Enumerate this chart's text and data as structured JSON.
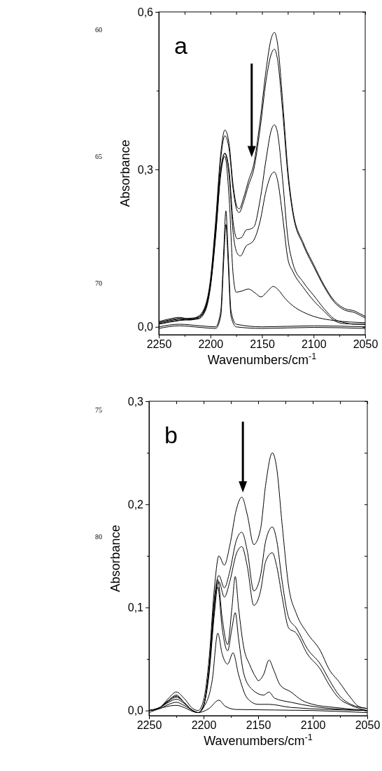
{
  "chart_data": [
    {
      "type": "line",
      "xlabel": "Wavenumbers/cm$^{-1}$",
      "ylabel": "Absorbance",
      "annotations": [
        "a",
        "60",
        "65",
        "70"
      ],
      "xlim": [
        2250,
        2050
      ],
      "xticks": [
        2250,
        {
          "value": 2225,
          "label": null
        },
        2200,
        {
          "value": 2175,
          "label": null
        },
        2150,
        {
          "value": 2125,
          "label": null
        },
        2100,
        {
          "value": 2075,
          "label": null
        },
        2050
      ],
      "ylim": [
        -0.015,
        0.6
      ],
      "yticks": [
        {
          "value": 0,
          "label": "0,0"
        },
        {
          "value": 0.15,
          "label": null
        },
        {
          "value": 0.3,
          "label": "0,3"
        },
        {
          "value": 0.45,
          "label": null
        },
        {
          "value": 0.6,
          "label": "0,6"
        }
      ],
      "grid": false,
      "marker": "none",
      "line_style": "solid",
      "series": [
        {
          "color": "#000000",
          "x": [
            2250,
            2240,
            2230,
            2220,
            2212,
            2205,
            2200,
            2195,
            2190,
            2186,
            2182,
            2178,
            2174,
            2172,
            2168,
            2163,
            2158,
            2152,
            2146,
            2141,
            2138,
            2135,
            2130,
            2125,
            2120,
            2110,
            2100,
            2090,
            2080,
            2070,
            2060,
            2055,
            2050
          ],
          "values": [
            0.01,
            0.015,
            0.018,
            0.015,
            0.02,
            0.04,
            0.09,
            0.2,
            0.33,
            0.375,
            0.35,
            0.27,
            0.228,
            0.225,
            0.245,
            0.279,
            0.31,
            0.39,
            0.49,
            0.55,
            0.561,
            0.54,
            0.43,
            0.3,
            0.22,
            0.16,
            0.119,
            0.08,
            0.05,
            0.035,
            0.03,
            0.025,
            0.02
          ]
        },
        {
          "color": "#000000",
          "x": [
            2250,
            2240,
            2230,
            2220,
            2212,
            2205,
            2200,
            2195,
            2190,
            2186,
            2182,
            2178,
            2174,
            2172,
            2168,
            2163,
            2158,
            2152,
            2146,
            2141,
            2138,
            2135,
            2130,
            2125,
            2120,
            2110,
            2100,
            2090,
            2080,
            2070,
            2060,
            2055,
            2050
          ],
          "values": [
            0.008,
            0.013,
            0.016,
            0.013,
            0.018,
            0.037,
            0.085,
            0.19,
            0.32,
            0.364,
            0.34,
            0.262,
            0.221,
            0.218,
            0.237,
            0.27,
            0.3,
            0.375,
            0.47,
            0.52,
            0.529,
            0.51,
            0.41,
            0.29,
            0.215,
            0.156,
            0.115,
            0.077,
            0.047,
            0.032,
            0.027,
            0.022,
            0.017
          ]
        },
        {
          "color": "#000000",
          "x": [
            2250,
            2230,
            2212,
            2205,
            2200,
            2195,
            2190,
            2186,
            2182,
            2178,
            2174,
            2170,
            2165,
            2162,
            2158,
            2152,
            2146,
            2141,
            2138,
            2135,
            2130,
            2125,
            2120,
            2110,
            2100,
            2090,
            2080,
            2070,
            2060,
            2050
          ],
          "values": [
            0.008,
            0.015,
            0.018,
            0.035,
            0.08,
            0.18,
            0.3,
            0.331,
            0.3,
            0.2,
            0.168,
            0.17,
            0.185,
            0.186,
            0.19,
            0.24,
            0.32,
            0.375,
            0.385,
            0.37,
            0.28,
            0.17,
            0.12,
            0.085,
            0.06,
            0.035,
            0.015,
            0.008,
            0.005,
            0.005
          ]
        },
        {
          "color": "#000000",
          "x": [
            2250,
            2230,
            2212,
            2205,
            2200,
            2195,
            2190,
            2186,
            2182,
            2178,
            2174,
            2171,
            2165,
            2162,
            2158,
            2152,
            2146,
            2141,
            2138,
            2135,
            2130,
            2125,
            2120,
            2110,
            2100,
            2090,
            2080,
            2070,
            2050
          ],
          "values": [
            0.006,
            0.013,
            0.016,
            0.033,
            0.078,
            0.175,
            0.295,
            0.33,
            0.29,
            0.18,
            0.14,
            0.135,
            0.155,
            0.158,
            0.165,
            0.2,
            0.26,
            0.29,
            0.295,
            0.28,
            0.21,
            0.13,
            0.105,
            0.075,
            0.05,
            0.03,
            0.012,
            0.006,
            0.005
          ]
        },
        {
          "color": "#000000",
          "x": [
            2250,
            2230,
            2212,
            2205,
            2200,
            2195,
            2190,
            2186,
            2182,
            2178,
            2175,
            2170,
            2163,
            2157,
            2151,
            2145,
            2139,
            2134,
            2128,
            2120,
            2110,
            2100,
            2080,
            2050
          ],
          "values": [
            0.005,
            0.012,
            0.015,
            0.03,
            0.075,
            0.17,
            0.29,
            0.325,
            0.25,
            0.1,
            0.066,
            0.068,
            0.072,
            0.065,
            0.057,
            0.067,
            0.077,
            0.07,
            0.055,
            0.04,
            0.028,
            0.02,
            0.012,
            0.008
          ]
        },
        {
          "color": "#000000",
          "x": [
            2250,
            2230,
            2210,
            2195,
            2190,
            2187,
            2185,
            2183,
            2180,
            2175,
            2150,
            2100,
            2050
          ],
          "values": [
            0.0,
            0.005,
            0.002,
            0.0,
            0.03,
            0.15,
            0.221,
            0.15,
            0.03,
            0.005,
            0.0,
            0.002,
            0.0
          ]
        },
        {
          "color": "#000000",
          "x": [
            2250,
            2230,
            2210,
            2195,
            2190,
            2187,
            2185,
            2183,
            2180,
            2175,
            2150,
            2100,
            2050
          ],
          "values": [
            -0.003,
            0.002,
            -0.001,
            -0.003,
            0.02,
            0.13,
            0.195,
            0.13,
            0.02,
            0.0,
            -0.003,
            -0.001,
            -0.003
          ]
        }
      ]
    },
    {
      "type": "line",
      "xlabel": "Wavenumbers/cm$^{-1}$",
      "ylabel": "Absorbance",
      "annotations": [
        "b",
        "75",
        "80"
      ],
      "xlim": [
        2250,
        2050
      ],
      "xticks": [
        2250,
        {
          "value": 2225,
          "label": null
        },
        2200,
        {
          "value": 2175,
          "label": null
        },
        2150,
        {
          "value": 2125,
          "label": null
        },
        2100,
        {
          "value": 2075,
          "label": null
        },
        2050
      ],
      "ylim": [
        -0.005,
        0.3
      ],
      "yticks": [
        {
          "value": 0,
          "label": "0,0"
        },
        {
          "value": 0.05,
          "label": null
        },
        {
          "value": 0.1,
          "label": "0,1"
        },
        {
          "value": 0.15,
          "label": null
        },
        {
          "value": 0.2,
          "label": "0,2"
        },
        {
          "value": 0.25,
          "label": null
        },
        {
          "value": 0.3,
          "label": "0,3"
        }
      ],
      "grid": false,
      "marker": "none",
      "line_style": "solid",
      "series": [
        {
          "color": "#000000",
          "x": [
            2250,
            2240,
            2232,
            2225,
            2218,
            2210,
            2205,
            2200,
            2195,
            2190,
            2186,
            2181,
            2176,
            2170,
            2165,
            2160,
            2154,
            2148,
            2143,
            2137,
            2133,
            2128,
            2122,
            2115,
            2105,
            2093,
            2085,
            2076,
            2065,
            2058,
            2050
          ],
          "values": [
            0.0,
            0.003,
            0.012,
            0.018,
            0.012,
            0.002,
            0.0,
            0.01,
            0.05,
            0.12,
            0.15,
            0.141,
            0.16,
            0.195,
            0.207,
            0.19,
            0.161,
            0.175,
            0.22,
            0.25,
            0.235,
            0.18,
            0.12,
            0.094,
            0.075,
            0.058,
            0.04,
            0.028,
            0.012,
            0.004,
            0.002
          ]
        },
        {
          "color": "#000000",
          "x": [
            2250,
            2240,
            2232,
            2225,
            2218,
            2210,
            2205,
            2200,
            2195,
            2190,
            2186,
            2181,
            2176,
            2170,
            2165,
            2160,
            2154,
            2148,
            2143,
            2137,
            2133,
            2128,
            2122,
            2115,
            2105,
            2093,
            2085,
            2076,
            2065,
            2050
          ],
          "values": [
            0.0,
            0.003,
            0.01,
            0.015,
            0.008,
            0.0,
            -0.002,
            0.005,
            0.04,
            0.11,
            0.131,
            0.119,
            0.135,
            0.165,
            0.173,
            0.155,
            0.116,
            0.13,
            0.165,
            0.178,
            0.165,
            0.125,
            0.09,
            0.08,
            0.06,
            0.045,
            0.03,
            0.015,
            0.006,
            0.002
          ]
        },
        {
          "color": "#000000",
          "x": [
            2250,
            2240,
            2232,
            2225,
            2218,
            2210,
            2205,
            2200,
            2195,
            2190,
            2186,
            2181,
            2176,
            2170,
            2165,
            2160,
            2154,
            2148,
            2143,
            2137,
            2133,
            2128,
            2122,
            2115,
            2105,
            2093,
            2085,
            2076,
            2065,
            2050
          ],
          "values": [
            0.0,
            0.003,
            0.01,
            0.014,
            0.008,
            0.0,
            -0.002,
            0.005,
            0.04,
            0.105,
            0.125,
            0.11,
            0.125,
            0.152,
            0.159,
            0.14,
            0.102,
            0.115,
            0.145,
            0.153,
            0.14,
            0.11,
            0.08,
            0.075,
            0.055,
            0.04,
            0.025,
            0.012,
            0.005,
            0.0
          ]
        },
        {
          "color": "#000000",
          "x": [
            2250,
            2240,
            2232,
            2225,
            2218,
            2210,
            2205,
            2200,
            2195,
            2190,
            2187,
            2183,
            2178,
            2174,
            2171,
            2168,
            2163,
            2158,
            2152,
            2150,
            2145,
            2140,
            2136,
            2130,
            2120,
            2110,
            2100,
            2080,
            2050
          ],
          "values": [
            0.0,
            0.003,
            0.009,
            0.013,
            0.008,
            0.0,
            -0.002,
            0.005,
            0.04,
            0.1,
            0.127,
            0.09,
            0.064,
            0.1,
            0.13,
            0.1,
            0.06,
            0.045,
            0.032,
            0.029,
            0.035,
            0.049,
            0.04,
            0.025,
            0.018,
            0.01,
            0.006,
            0.003,
            0.0
          ]
        },
        {
          "color": "#000000",
          "x": [
            2250,
            2240,
            2232,
            2225,
            2218,
            2210,
            2205,
            2200,
            2195,
            2190,
            2187,
            2183,
            2178,
            2174,
            2171,
            2168,
            2163,
            2155,
            2145,
            2140,
            2135,
            2120,
            2100,
            2050
          ],
          "values": [
            0.0,
            0.003,
            0.008,
            0.011,
            0.007,
            0.0,
            -0.002,
            0.005,
            0.035,
            0.095,
            0.12,
            0.08,
            0.058,
            0.08,
            0.095,
            0.07,
            0.035,
            0.02,
            0.015,
            0.018,
            0.012,
            0.008,
            0.004,
            0.0
          ]
        },
        {
          "color": "#000000",
          "x": [
            2250,
            2240,
            2232,
            2225,
            2218,
            2210,
            2205,
            2200,
            2192,
            2187,
            2183,
            2178,
            2173,
            2168,
            2160,
            2150,
            2140,
            2120,
            2050
          ],
          "values": [
            0.0,
            0.002,
            0.006,
            0.008,
            0.005,
            0.0,
            -0.002,
            0.003,
            0.03,
            0.075,
            0.055,
            0.045,
            0.056,
            0.035,
            0.012,
            0.006,
            0.006,
            0.003,
            0.0
          ]
        },
        {
          "color": "#000000",
          "x": [
            2250,
            2225,
            2205,
            2195,
            2186,
            2180,
            2170,
            2100,
            2050
          ],
          "values": [
            -0.002,
            0.005,
            -0.002,
            0.002,
            0.01,
            0.004,
            0.001,
            0.0,
            -0.002
          ]
        }
      ]
    }
  ]
}
